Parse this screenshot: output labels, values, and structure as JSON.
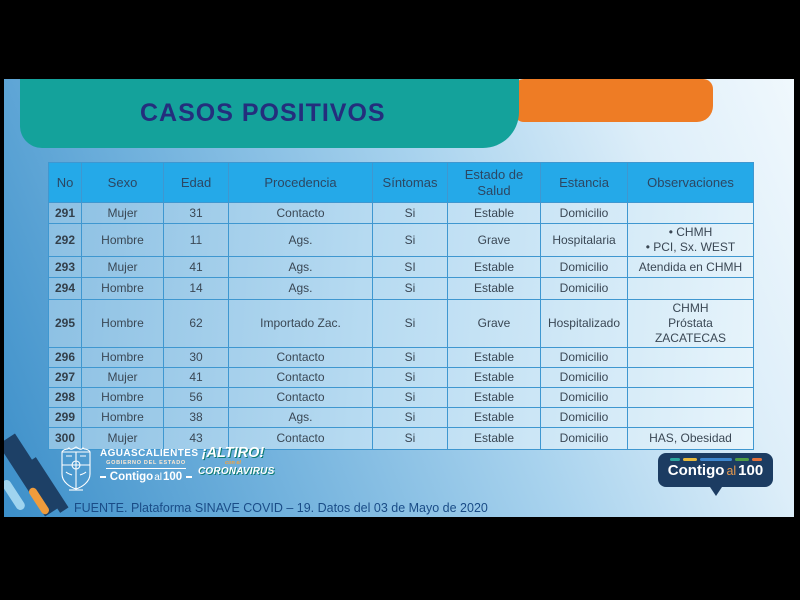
{
  "title": "CASOS POSITIVOS",
  "table": {
    "headers": [
      "No",
      "Sexo",
      "Edad",
      "Procedencia",
      "Síntomas",
      "Estado de Salud",
      "Estancia",
      "Observaciones"
    ],
    "rows": [
      [
        "291",
        "Mujer",
        "31",
        "Contacto",
        "Si",
        "Estable",
        "Domicilio",
        ""
      ],
      [
        "292",
        "Hombre",
        "11",
        "Ags.",
        "Si",
        "Grave",
        "Hospitalaria",
        "•  CHMH\n•  PCI, Sx. WEST"
      ],
      [
        "293",
        "Mujer",
        "41",
        "Ags.",
        "SI",
        "Estable",
        "Domicilio",
        "Atendida en CHMH"
      ],
      [
        "294",
        "Hombre",
        "14",
        "Ags.",
        "Si",
        "Estable",
        "Domicilio",
        ""
      ],
      [
        "295",
        "Hombre",
        "62",
        "Importado Zac.",
        "Si",
        "Grave",
        "Hospitalizado",
        "CHMH\nPróstata\nZACATECAS"
      ],
      [
        "296",
        "Hombre",
        "30",
        "Contacto",
        "Si",
        "Estable",
        "Domicilio",
        ""
      ],
      [
        "297",
        "Mujer",
        "41",
        "Contacto",
        "Si",
        "Estable",
        "Domicilio",
        ""
      ],
      [
        "298",
        "Hombre",
        "56",
        "Contacto",
        "Si",
        "Estable",
        "Domicilio",
        ""
      ],
      [
        "299",
        "Hombre",
        "38",
        "Ags.",
        "Si",
        "Estable",
        "Domicilio",
        ""
      ],
      [
        "300",
        "Mujer",
        "43",
        "Contacto",
        "Si",
        "Estable",
        "Domicilio",
        "HAS, Obesidad"
      ]
    ]
  },
  "footer": {
    "gov_logo": {
      "name": "AGUASCALIENTES",
      "subtitle": "GOBIERNO DEL ESTADO",
      "slogan_word1": "Contigo",
      "slogan_word2": "al",
      "slogan_word3": "100"
    },
    "campaign_logo": {
      "top": "¡ALTIRO!",
      "mid": "con el",
      "bottom": "CORONAVIRUS"
    },
    "source": "FUENTE. Plataforma SINAVE COVID – 19. Datos del 03 de Mayo de 2020",
    "bubble": {
      "word1": "Contigo",
      "word2": "al",
      "word3": "100"
    }
  },
  "colors": {
    "banner_teal": "#14a29b",
    "banner_orange": "#ee7c25",
    "title_navy": "#242e7d",
    "table_header_blue": "#25a9e8",
    "table_border_blue": "#3f97d0",
    "bubble_navy": "#1c3c62",
    "stripe_navy": "#1d4066",
    "stripe_orange": "#f09c3c"
  }
}
